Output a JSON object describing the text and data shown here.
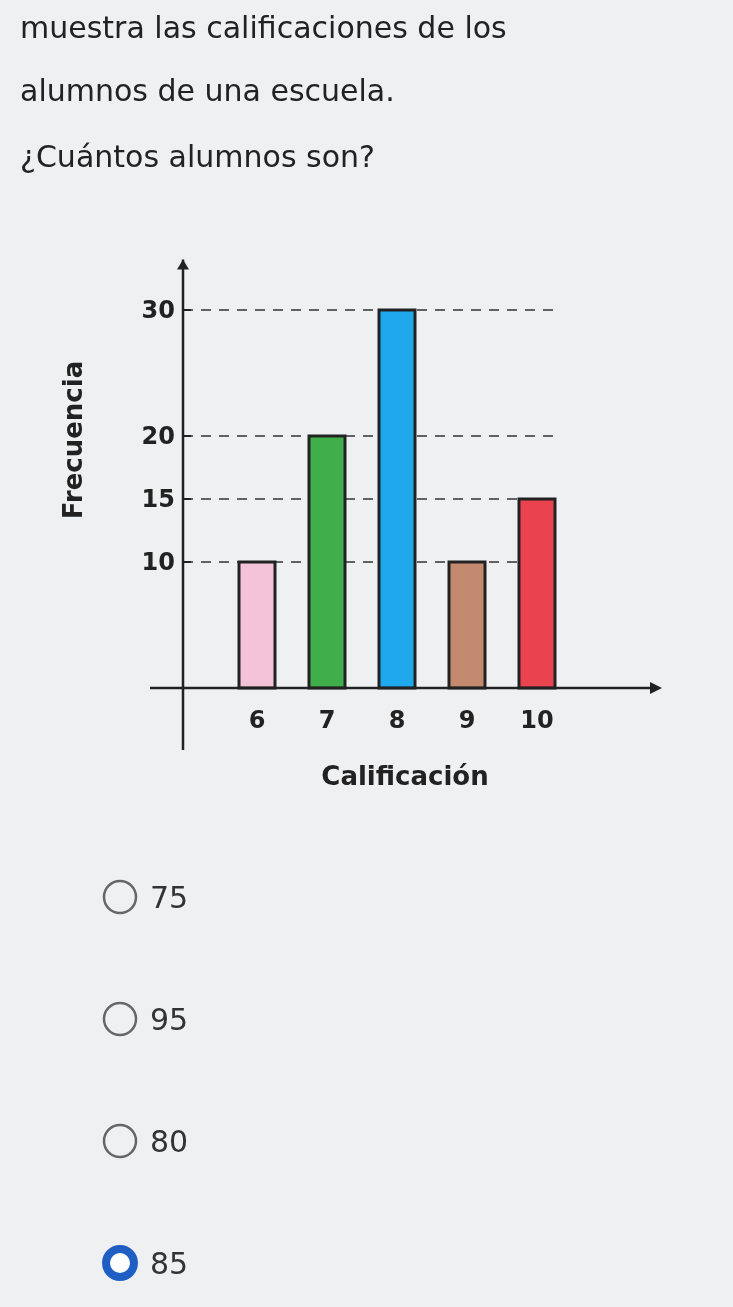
{
  "chart_data": {
    "type": "bar",
    "title": "muestra las calificaciones de los alumnos de una escuela.",
    "subtitle": "¿Cuántos alumnos son?",
    "xlabel": "Calificación",
    "ylabel": "Frecuencia",
    "categories": [
      "6",
      "7",
      "8",
      "9",
      "10"
    ],
    "values": [
      10,
      20,
      30,
      10,
      15
    ],
    "colors": [
      "#f4c3d8",
      "#3fae4b",
      "#1fa8ec",
      "#c48a70",
      "#e8434f"
    ],
    "ylim": [
      0,
      34
    ],
    "yticks": [
      10,
      15,
      20,
      30
    ],
    "grid": "y",
    "annotations": [
      "75",
      "95",
      "80",
      "85"
    ]
  }
}
